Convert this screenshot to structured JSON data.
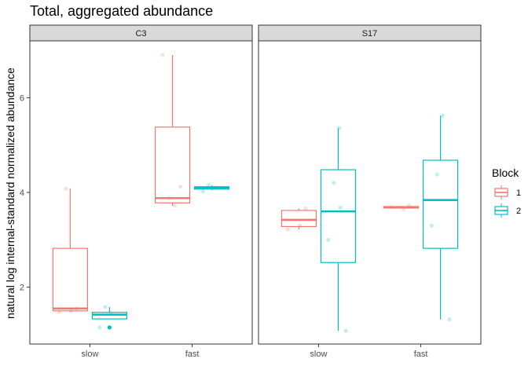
{
  "chart_data": {
    "type": "box",
    "title": "Total, aggregated abundance",
    "ylabel": "natural log internal-standard normalized abundance",
    "xlabel": "",
    "ylim": [
      0.8,
      7.2
    ],
    "yticks": [
      2,
      4,
      6
    ],
    "categories": [
      "slow",
      "fast"
    ],
    "panels": [
      {
        "strip": "C3",
        "groups": [
          {
            "category": "slow",
            "block": "1",
            "q1": 1.5,
            "median": 1.55,
            "q3": 2.82,
            "lower": 1.48,
            "upper": 4.08,
            "points": [
              1.48,
              1.55,
              1.5,
              4.08
            ],
            "outliers": []
          },
          {
            "category": "slow",
            "block": "2",
            "q1": 1.33,
            "median": 1.42,
            "q3": 1.47,
            "lower": 1.33,
            "upper": 1.58,
            "points": [
              1.45,
              1.58,
              1.15
            ],
            "outliers": [
              1.15
            ]
          },
          {
            "category": "fast",
            "block": "1",
            "q1": 3.78,
            "median": 3.88,
            "q3": 5.38,
            "lower": 3.72,
            "upper": 6.9,
            "points": [
              6.9,
              4.12,
              3.72,
              3.88
            ],
            "outliers": []
          },
          {
            "category": "fast",
            "block": "2",
            "q1": 4.07,
            "median": 4.1,
            "q3": 4.12,
            "lower": 4.05,
            "upper": 4.15,
            "points": [
              4.1,
              4.16,
              4.02
            ],
            "outliers": []
          }
        ]
      },
      {
        "strip": "S17",
        "groups": [
          {
            "category": "slow",
            "block": "1",
            "q1": 3.28,
            "median": 3.42,
            "q3": 3.62,
            "lower": 3.22,
            "upper": 3.66,
            "points": [
              3.22,
              3.66,
              3.3
            ],
            "outliers": []
          },
          {
            "category": "slow",
            "block": "2",
            "q1": 2.52,
            "median": 3.6,
            "q3": 4.48,
            "lower": 1.08,
            "upper": 5.36,
            "points": [
              5.36,
              4.2,
              3.0,
              1.08,
              3.68
            ],
            "outliers": []
          },
          {
            "category": "fast",
            "block": "1",
            "q1": 3.67,
            "median": 3.69,
            "q3": 3.7,
            "lower": 3.67,
            "upper": 3.71,
            "points": [
              3.69,
              3.72,
              3.65
            ],
            "outliers": []
          },
          {
            "category": "fast",
            "block": "2",
            "q1": 2.82,
            "median": 3.84,
            "q3": 4.68,
            "lower": 1.32,
            "upper": 5.62,
            "points": [
              5.62,
              4.38,
              3.3,
              1.32
            ],
            "outliers": []
          }
        ]
      }
    ],
    "legend": {
      "title": "Block",
      "position": "right",
      "entries": [
        {
          "label": "1",
          "color": "#F8766D"
        },
        {
          "label": "2",
          "color": "#00BFC4"
        }
      ]
    }
  }
}
